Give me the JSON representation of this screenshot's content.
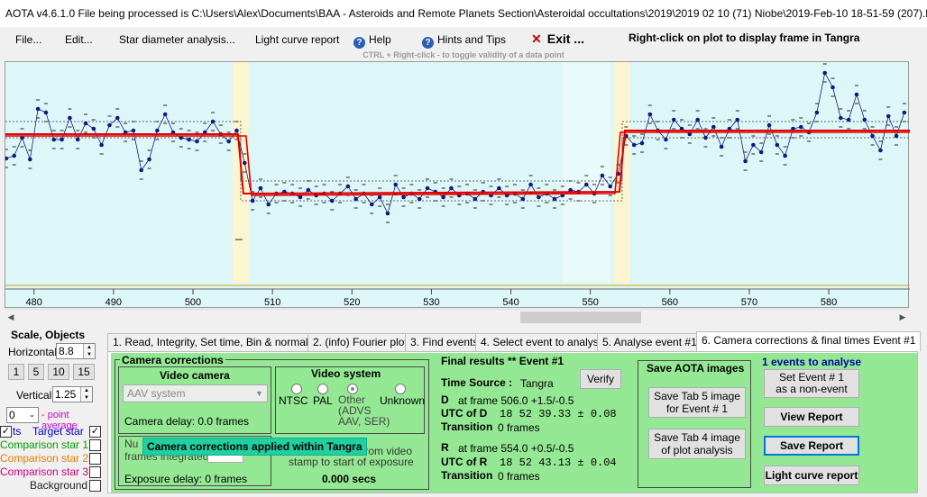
{
  "window": {
    "title": "AOTA v4.6.1.0    File being processed is C:\\Users\\Alex\\Documents\\BAA - Asteroids and Remote Planets Section\\Asteroidal occultations\\2019\\2019 02 10 (71) Niobe\\2019-Feb-10 18-51-59 (207).l..."
  },
  "menu": {
    "file": "File...",
    "edit": "Edit...",
    "star_diameter": "Star diameter analysis...",
    "light_curve_report": "Light curve report",
    "help": "Help",
    "hints": "Hints and Tips",
    "exit": "Exit ...",
    "right_click_hint": "Right-click on plot to display frame in Tangra",
    "ctrl_hint": "CTRL + Right-click  -  to toggle validity of a data point"
  },
  "plot": {
    "x_ticks": [
      "480",
      "490",
      "500",
      "510",
      "520",
      "530",
      "540",
      "550",
      "560",
      "570",
      "580"
    ],
    "x_range": [
      476.4,
      590.2
    ],
    "y_range": [
      0,
      274
    ],
    "d_frame": 506.0,
    "r_frame": 554.0,
    "colors": {
      "background": "#ddf6f8",
      "event_band": "#fdf5d0",
      "model": "#e00000",
      "points": "#0a1e80",
      "reference": "#e0a000"
    },
    "series": [
      {
        "x": 476.5,
        "y": 107
      },
      {
        "x": 477.5,
        "y": 104
      },
      {
        "x": 478.5,
        "y": 84
      },
      {
        "x": 479.5,
        "y": 108
      },
      {
        "x": 480.5,
        "y": 52
      },
      {
        "x": 481.5,
        "y": 56
      },
      {
        "x": 482.5,
        "y": 86
      },
      {
        "x": 483.5,
        "y": 86
      },
      {
        "x": 484.5,
        "y": 62
      },
      {
        "x": 485.5,
        "y": 86
      },
      {
        "x": 486.5,
        "y": 68
      },
      {
        "x": 487.5,
        "y": 74
      },
      {
        "x": 488.5,
        "y": 92
      },
      {
        "x": 489.5,
        "y": 70
      },
      {
        "x": 490.5,
        "y": 62
      },
      {
        "x": 491.5,
        "y": 78
      },
      {
        "x": 492.5,
        "y": 76
      },
      {
        "x": 493.5,
        "y": 120
      },
      {
        "x": 494.5,
        "y": 108
      },
      {
        "x": 495.5,
        "y": 76
      },
      {
        "x": 496.5,
        "y": 58
      },
      {
        "x": 497.5,
        "y": 78
      },
      {
        "x": 498.5,
        "y": 84
      },
      {
        "x": 499.5,
        "y": 86
      },
      {
        "x": 500.5,
        "y": 88
      },
      {
        "x": 501.5,
        "y": 78
      },
      {
        "x": 502.5,
        "y": 66
      },
      {
        "x": 503.5,
        "y": 80
      },
      {
        "x": 504.5,
        "y": 88
      },
      {
        "x": 505.5,
        "y": 76
      },
      {
        "x": 506.5,
        "y": 112
      },
      {
        "x": 507.5,
        "y": 154
      },
      {
        "x": 508.5,
        "y": 140
      },
      {
        "x": 509.5,
        "y": 158
      },
      {
        "x": 510.5,
        "y": 146
      },
      {
        "x": 511.5,
        "y": 144
      },
      {
        "x": 512.5,
        "y": 146
      },
      {
        "x": 513.5,
        "y": 150
      },
      {
        "x": 514.5,
        "y": 142
      },
      {
        "x": 515.5,
        "y": 148
      },
      {
        "x": 516.5,
        "y": 146
      },
      {
        "x": 517.5,
        "y": 154
      },
      {
        "x": 518.5,
        "y": 146
      },
      {
        "x": 519.5,
        "y": 138
      },
      {
        "x": 520.5,
        "y": 152
      },
      {
        "x": 521.5,
        "y": 146
      },
      {
        "x": 522.5,
        "y": 158
      },
      {
        "x": 523.5,
        "y": 150
      },
      {
        "x": 524.5,
        "y": 168
      },
      {
        "x": 525.5,
        "y": 136
      },
      {
        "x": 526.5,
        "y": 150
      },
      {
        "x": 527.5,
        "y": 146
      },
      {
        "x": 528.5,
        "y": 152
      },
      {
        "x": 529.5,
        "y": 140
      },
      {
        "x": 530.5,
        "y": 144
      },
      {
        "x": 531.5,
        "y": 150
      },
      {
        "x": 532.5,
        "y": 140
      },
      {
        "x": 533.5,
        "y": 148
      },
      {
        "x": 534.5,
        "y": 146
      },
      {
        "x": 535.5,
        "y": 152
      },
      {
        "x": 536.5,
        "y": 144
      },
      {
        "x": 537.5,
        "y": 148
      },
      {
        "x": 538.5,
        "y": 140
      },
      {
        "x": 539.5,
        "y": 148
      },
      {
        "x": 540.5,
        "y": 146
      },
      {
        "x": 541.5,
        "y": 152
      },
      {
        "x": 542.5,
        "y": 136
      },
      {
        "x": 543.5,
        "y": 150
      },
      {
        "x": 544.5,
        "y": 146
      },
      {
        "x": 545.5,
        "y": 152
      },
      {
        "x": 546.5,
        "y": 148
      },
      {
        "x": 547.5,
        "y": 142
      },
      {
        "x": 548.5,
        "y": 144
      },
      {
        "x": 549.5,
        "y": 136
      },
      {
        "x": 550.5,
        "y": 146
      },
      {
        "x": 551.5,
        "y": 126
      },
      {
        "x": 552.5,
        "y": 138
      },
      {
        "x": 553.5,
        "y": 124
      },
      {
        "x": 554.5,
        "y": 82
      },
      {
        "x": 555.5,
        "y": 92
      },
      {
        "x": 556.5,
        "y": 90
      },
      {
        "x": 557.5,
        "y": 58
      },
      {
        "x": 558.5,
        "y": 76
      },
      {
        "x": 559.5,
        "y": 86
      },
      {
        "x": 560.5,
        "y": 64
      },
      {
        "x": 561.5,
        "y": 74
      },
      {
        "x": 562.5,
        "y": 80
      },
      {
        "x": 563.5,
        "y": 64
      },
      {
        "x": 564.5,
        "y": 84
      },
      {
        "x": 565.5,
        "y": 72
      },
      {
        "x": 566.5,
        "y": 94
      },
      {
        "x": 567.5,
        "y": 74
      },
      {
        "x": 568.5,
        "y": 64
      },
      {
        "x": 569.5,
        "y": 110
      },
      {
        "x": 570.5,
        "y": 92
      },
      {
        "x": 571.5,
        "y": 100
      },
      {
        "x": 572.5,
        "y": 70
      },
      {
        "x": 573.5,
        "y": 92
      },
      {
        "x": 574.5,
        "y": 104
      },
      {
        "x": 575.5,
        "y": 74
      },
      {
        "x": 576.5,
        "y": 72
      },
      {
        "x": 577.5,
        "y": 78
      },
      {
        "x": 578.5,
        "y": 56
      },
      {
        "x": 579.5,
        "y": 12
      },
      {
        "x": 580.5,
        "y": 28
      },
      {
        "x": 581.5,
        "y": 62
      },
      {
        "x": 582.5,
        "y": 64
      },
      {
        "x": 583.5,
        "y": 36
      },
      {
        "x": 584.5,
        "y": 64
      },
      {
        "x": 585.5,
        "y": 82
      },
      {
        "x": 586.5,
        "y": 98
      },
      {
        "x": 587.5,
        "y": 60
      },
      {
        "x": 588.5,
        "y": 82
      },
      {
        "x": 589.5,
        "y": 56
      }
    ]
  },
  "scale": {
    "title": "Scale,  Objects",
    "horizontal_label": "Horizontal",
    "horizontal_value": "8.8",
    "buttons": [
      "1",
      "5",
      "10",
      "15"
    ],
    "vertical_label": "Vertical",
    "vertical_value": "1.25",
    "point_avg_value": "0",
    "point_avg_label": "- point average"
  },
  "legend": [
    {
      "label": "Target star",
      "color": "#0000cc",
      "checked": true
    },
    {
      "label": "Comparison star 1",
      "color": "#00a000",
      "checked": false
    },
    {
      "label": "Comparison star 2",
      "color": "#e08000",
      "checked": false
    },
    {
      "label": "Comparison star 3",
      "color": "#cc0080",
      "checked": false
    },
    {
      "label": "Background",
      "color": "#222222",
      "checked": false
    }
  ],
  "tabs": [
    "1.  Read, Integrity, Set time, Bin & normalise",
    "2. (info)  Fourier plot",
    "3. Find events",
    "4. Select event to analyse",
    "5. Analyse event #1",
    "6. Camera corrections & final times Event #1"
  ],
  "camera": {
    "group_title": "Camera corrections",
    "video_camera_title": "Video camera",
    "camera_select": "AAV system",
    "camera_delay": "Camera delay: 0.0 frames",
    "frames_integrated_label": "frames integrated",
    "num_prefix": "Nu",
    "exposure_delay": "Exposure delay: 0 frames",
    "tooltip": "Camera corrections applied within Tangra"
  },
  "video_system": {
    "title": "Video system",
    "options": [
      "NTSC",
      "PAL",
      "Other\n(ADVS\nAAV, SER)",
      "Unknown"
    ],
    "selected": "Other",
    "stamp_text_1": "from video",
    "stamp_text_2": "stamp to start of exposure",
    "stamp_value": "0.000 secs"
  },
  "final": {
    "title": "Final results  **  Event #1",
    "verify": "Verify",
    "time_source_label": "Time Source :",
    "time_source_value": "Tangra",
    "d_label": "D",
    "d_frame": "at frame 506.0  +1.5/-0.5",
    "utc_d_label": "UTC of D",
    "utc_d_value": "18 52 39.33  ± 0.08",
    "transition_label": "Transition",
    "transition_d": "0 frames",
    "r_label": "R",
    "r_frame": "at frame 554.0  +0.5/-0.5",
    "utc_r_label": "UTC of R",
    "utc_r_value": "18 52 43.13  ± 0.04",
    "transition_r": "0 frames"
  },
  "save": {
    "title": "Save AOTA images",
    "tab5": "Save Tab 5 image\nfor Event # 1",
    "tab4": "Save Tab 4 image\nof plot analysis"
  },
  "report": {
    "events_label": "1  events to analyse",
    "set_non_event": "Set Event # 1\nas a non-event",
    "view": "View Report",
    "save": "Save Report",
    "light_curve": "Light curve report"
  }
}
